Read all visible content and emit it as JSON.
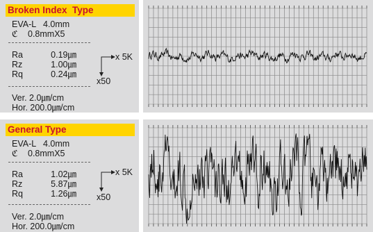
{
  "colors": {
    "banner_bg": "#ffd400",
    "banner_text": "#c8102e",
    "panel_bg": "#dcdcdd",
    "trace": "#111111",
    "grid": "#555555"
  },
  "panels": [
    {
      "title": "Broken Index  Type",
      "instrument": "EVA-L",
      "length": "4.0mm",
      "cutoff_symbol": "ℭ",
      "cutoff": "0.8mmX5",
      "params": [
        {
          "name": "Ra",
          "value": "0.19㎛"
        },
        {
          "name": "Rz",
          "value": "1.00㎛"
        },
        {
          "name": "Rq",
          "value": "0.24㎛"
        }
      ],
      "h_mag": "x 5K",
      "v_mag": "x50",
      "ver": "Ver. 2.0㎛/cm",
      "hor": "Hor. 200.0㎛/cm",
      "amplitude": 0.15
    },
    {
      "title": "General Type",
      "instrument": "EVA-L",
      "length": "4.0mm",
      "cutoff_symbol": "ℭ",
      "cutoff": "0.8mmX5",
      "params": [
        {
          "name": "Ra",
          "value": "1.02㎛"
        },
        {
          "name": "Rz",
          "value": "5.87㎛"
        },
        {
          "name": "Rq",
          "value": "1.26㎛"
        }
      ],
      "h_mag": "x 5K",
      "v_mag": "x50",
      "ver": "Ver. 2.0㎛/cm",
      "hor": "Hor. 200.0㎛/cm",
      "amplitude": 1.0
    }
  ]
}
